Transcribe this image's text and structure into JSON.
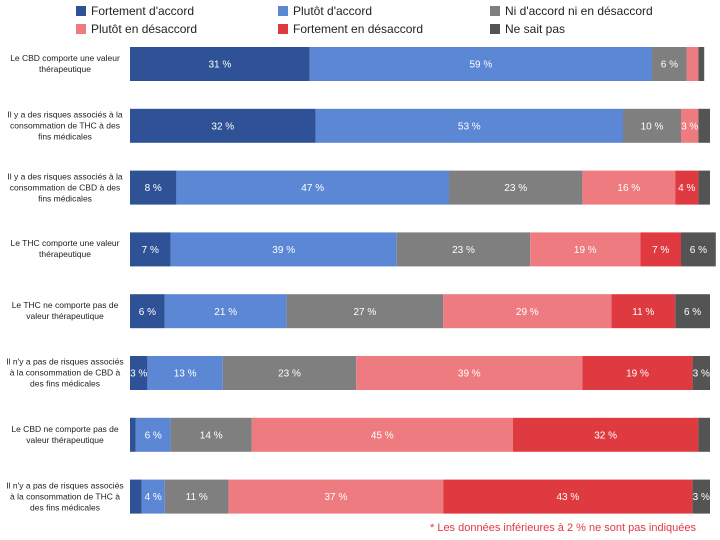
{
  "chart_data": {
    "type": "bar",
    "orientation": "horizontal",
    "stacked": true,
    "xlim": [
      0,
      100
    ],
    "categories": [
      "Le CBD comporte une valeur thérapeutique",
      "Il y a des risques associés à la consommation de THC à des fins médicales",
      "Il y a des risques associés à la consommation de CBD à des fins médicales",
      "Le THC comporte une valeur thérapeutique",
      "Le THC ne comporte pas de valeur thérapeutique",
      "Il n'y a pas de risques associés à la consommation de CBD à des fins médicales",
      "Le CBD ne comporte pas de valeur thérapeutique",
      "Il n'y a pas de risques associés à la consommation de THC à des fins médicales"
    ],
    "series": [
      {
        "name": "Fortement d'accord",
        "color": "#2f5296",
        "values": [
          31,
          32,
          8,
          7,
          6,
          3,
          1,
          2
        ],
        "value_labels": [
          "31 %",
          "32 %",
          "8 %",
          "7 %",
          "6 %",
          "3 %",
          null,
          null
        ]
      },
      {
        "name": "Plutôt d'accord",
        "color": "#5b87d5",
        "values": [
          59,
          53,
          47,
          39,
          21,
          13,
          6,
          4
        ],
        "value_labels": [
          "59 %",
          "53 %",
          "47 %",
          "39 %",
          "21 %",
          "13 %",
          "6 %",
          "4 %"
        ]
      },
      {
        "name": "Ni d'accord ni en désaccord",
        "color": "#7f7f7f",
        "values": [
          6,
          10,
          23,
          23,
          27,
          23,
          14,
          11
        ],
        "value_labels": [
          "6 %",
          "10 %",
          "23 %",
          "23 %",
          "27 %",
          "23 %",
          "14 %",
          "11 %"
        ]
      },
      {
        "name": "Plutôt en désaccord",
        "color": "#ee7b80",
        "values": [
          2,
          3,
          16,
          19,
          29,
          39,
          45,
          37
        ],
        "value_labels": [
          null,
          "3 %",
          "16 %",
          "19 %",
          "29 %",
          "39 %",
          "45 %",
          "37 %"
        ]
      },
      {
        "name": "Fortement en désaccord",
        "color": "#df3a40",
        "values": [
          0,
          0,
          4,
          7,
          11,
          19,
          32,
          43
        ],
        "value_labels": [
          null,
          null,
          "4 %",
          "7 %",
          "11 %",
          "19 %",
          "32 %",
          "43 %"
        ]
      },
      {
        "name": "Ne sait pas",
        "color": "#545454",
        "values": [
          1,
          2,
          2,
          6,
          6,
          3,
          2,
          3
        ],
        "value_labels": [
          null,
          null,
          null,
          "6 %",
          "6 %",
          "3 %",
          null,
          "3 %"
        ]
      }
    ],
    "footnote": "* Les données inférieures à 2 % ne sont pas indiquées",
    "footnote_color": "#e03a40"
  }
}
